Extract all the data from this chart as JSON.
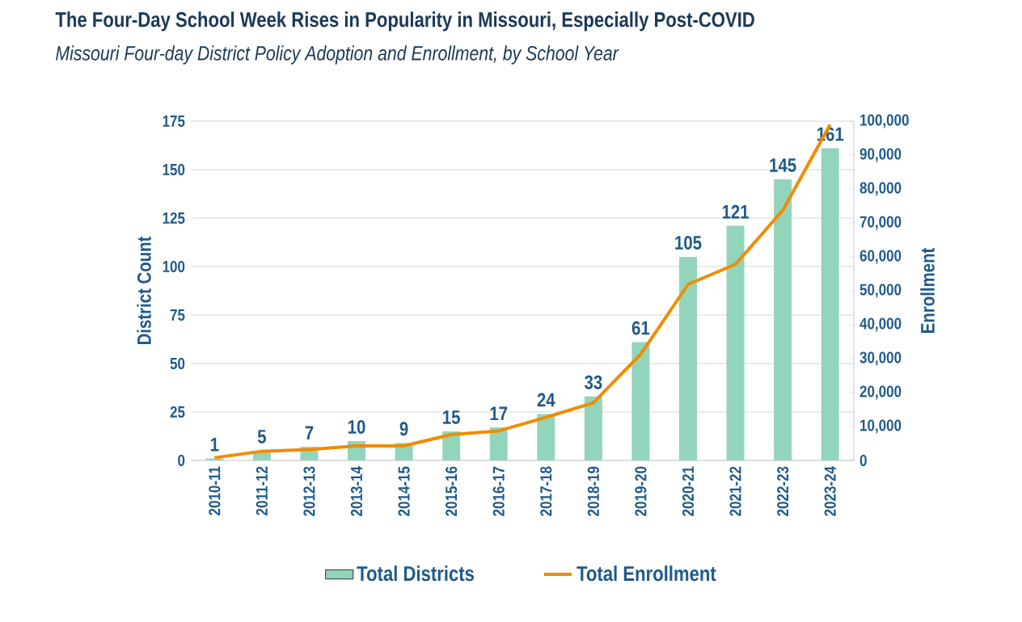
{
  "chart_data": {
    "type": "bar",
    "title": "The Four-Day School Week Rises in Popularity in Missouri, Especially Post-COVID",
    "subtitle": "Missouri Four-day District Policy Adoption and Enrollment, by School Year",
    "ylabel": "District Count",
    "y2label": "Enrollment",
    "categories": [
      "2010-11",
      "2011-12",
      "2012-13",
      "2013-14",
      "2014-15",
      "2015-16",
      "2016-17",
      "2017-18",
      "2018-19",
      "2019-20",
      "2020-21",
      "2021-22",
      "2022-23",
      "2023-24"
    ],
    "series": [
      {
        "name": "Total Districts",
        "color": "#93d5bb",
        "values": [
          1,
          5,
          7,
          10,
          9,
          15,
          17,
          24,
          33,
          61,
          105,
          121,
          145,
          161
        ],
        "value_labels": [
          "1",
          "5",
          "7",
          "10",
          "9",
          "15",
          "17",
          "24",
          "33",
          "61",
          "105",
          "121",
          "145",
          "161"
        ]
      },
      {
        "name": "Total Enrollment",
        "type": "line",
        "axis": "y2",
        "color": "#f08c00",
        "values": [
          800,
          2700,
          3200,
          4300,
          4300,
          7600,
          8700,
          12700,
          17000,
          31300,
          51900,
          57800,
          73700,
          99000
        ]
      }
    ],
    "ylim": [
      0,
      175
    ],
    "yticks": [
      0,
      25,
      50,
      75,
      100,
      125,
      150,
      175
    ],
    "y2lim": [
      0,
      100000
    ],
    "y2ticks": [
      0,
      {
        "value": 10000,
        "label": "10,000"
      },
      {
        "value": 20000,
        "label": "20,000"
      },
      {
        "value": 30000,
        "label": "30,000"
      },
      {
        "value": 40000,
        "label": "40,000"
      },
      {
        "value": 50000,
        "label": "50,000"
      },
      {
        "value": 60000,
        "label": "60,000"
      },
      {
        "value": 70000,
        "label": "70,000"
      },
      {
        "value": 80000,
        "label": "80,000"
      },
      {
        "value": 90000,
        "label": "90,000"
      },
      {
        "value": 100000,
        "label": "100,000"
      }
    ],
    "grid": "y",
    "legend": "bottom"
  }
}
